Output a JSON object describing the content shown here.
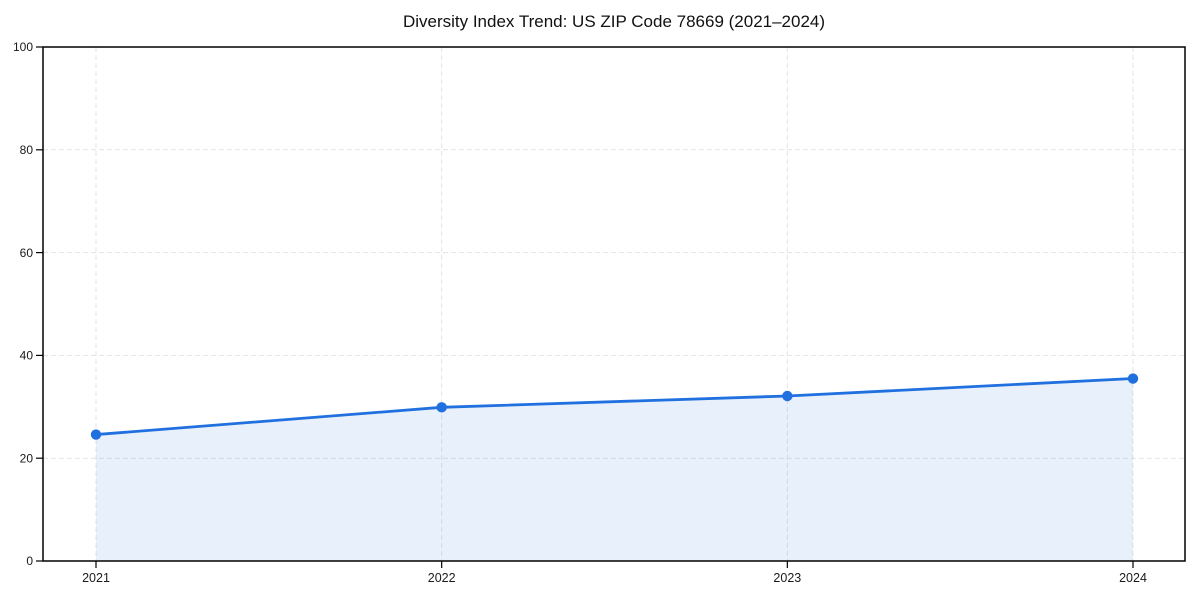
{
  "chart_data": {
    "type": "area",
    "title": "Diversity Index Trend: US ZIP Code 78669 (2021–2024)",
    "xlabel": "",
    "ylabel": "",
    "categories": [
      "2021",
      "2022",
      "2023",
      "2024"
    ],
    "series": [
      {
        "name": "Diversity Index",
        "values": [
          24.6,
          29.9,
          32.1,
          35.5
        ]
      }
    ],
    "ylim": [
      0,
      100
    ],
    "yticks": [
      0,
      20,
      40,
      60,
      80,
      100
    ],
    "grid": true,
    "grid_style": "dashed",
    "legend_position": "none",
    "line_color": "#2170e0",
    "fill_color": "#2170e0",
    "fill_opacity": 0.1,
    "grid_color": "#e4e4e4",
    "axis_color": "#000000",
    "tick_label_color": "#1a1a1a",
    "marker": "circle"
  }
}
